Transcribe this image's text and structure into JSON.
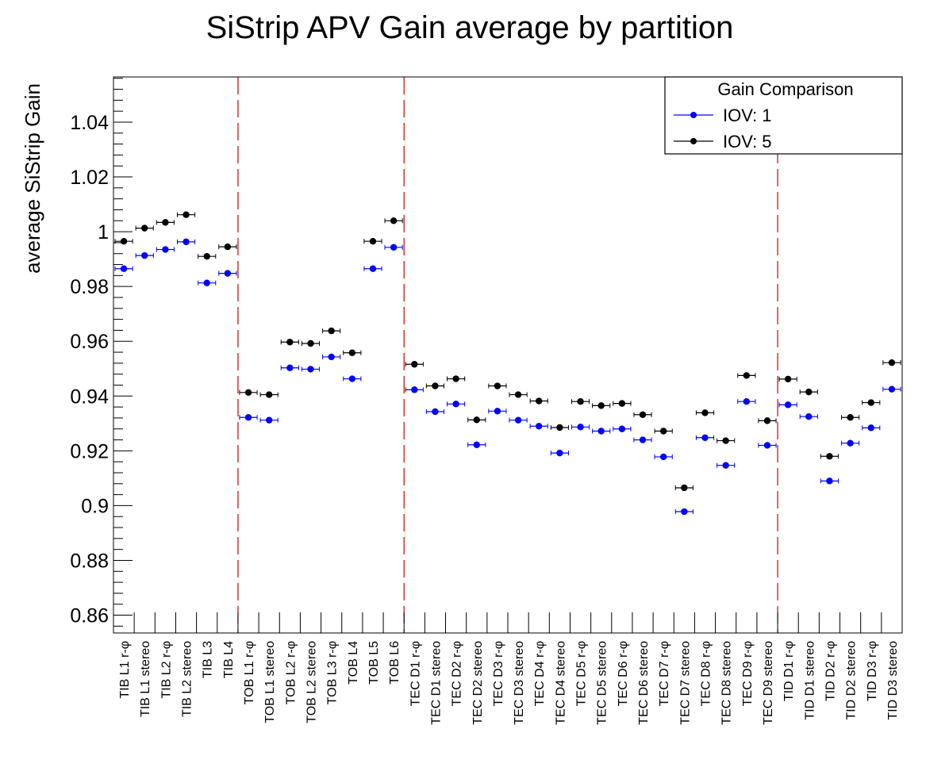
{
  "chart_data": {
    "type": "scatter",
    "title": "SiStrip APV Gain average by partition",
    "ylabel": "average SiStrip Gain",
    "xlabel": "",
    "ylim": [
      0.8535,
      1.0565
    ],
    "yticks": [
      0.86,
      0.88,
      0.9,
      0.92,
      0.94,
      0.96,
      0.98,
      1,
      1.02,
      1.04
    ],
    "ytick_labels": [
      "0.86",
      "0.88",
      "0.9",
      "0.92",
      "0.94",
      "0.96",
      "0.98",
      "1",
      "1.02",
      "1.04"
    ],
    "categories": [
      "TIB L1 r-φ",
      "TIB L1 stereo",
      "TIB L2 r-φ",
      "TIB L2 stereo",
      "TIB L3",
      "TIB L4",
      "TOB L1 r-φ",
      "TOB L1 stereo",
      "TOB L2 r-φ",
      "TOB L2 stereo",
      "TOB L3 r-φ",
      "TOB L4",
      "TOB L5",
      "TOB L6",
      "TEC D1 r-φ",
      "TEC D1 stereo",
      "TEC D2 r-φ",
      "TEC D2 stereo",
      "TEC D3 r-φ",
      "TEC D3 stereo",
      "TEC D4 r-φ",
      "TEC D4 stereo",
      "TEC D5 r-φ",
      "TEC D5 stereo",
      "TEC D6 r-φ",
      "TEC D6 stereo",
      "TEC D7 r-φ",
      "TEC D7 stereo",
      "TEC D8 r-φ",
      "TEC D8 stereo",
      "TEC D9 r-φ",
      "TEC D9 stereo",
      "TID D1 r-φ",
      "TID D1 stereo",
      "TID D2 r-φ",
      "TID D2 stereo",
      "TID D3 r-φ",
      "TID D3 stereo"
    ],
    "series": [
      {
        "name": "IOV: 1",
        "color": "#0000ff",
        "values": [
          0.9865,
          0.9913,
          0.9935,
          0.9963,
          0.9813,
          0.9848,
          0.9322,
          0.9312,
          0.9503,
          0.9498,
          0.9543,
          0.9463,
          0.9865,
          0.9943,
          0.9423,
          0.9343,
          0.9371,
          0.9222,
          0.9345,
          0.9312,
          0.929,
          0.9192,
          0.9287,
          0.9272,
          0.928,
          0.924,
          0.9178,
          0.8978,
          0.9248,
          0.9147,
          0.938,
          0.922,
          0.9368,
          0.9325,
          0.909,
          0.9228,
          0.9284,
          0.9425
        ]
      },
      {
        "name": "IOV: 5",
        "color": "#000000",
        "values": [
          0.9965,
          1.0013,
          1.0034,
          1.0062,
          0.991,
          0.9945,
          0.9413,
          0.9405,
          0.9597,
          0.9592,
          0.9638,
          0.9558,
          0.9965,
          1.004,
          0.9516,
          0.9437,
          0.9463,
          0.9313,
          0.9437,
          0.9405,
          0.9382,
          0.9285,
          0.938,
          0.9365,
          0.9373,
          0.9332,
          0.9272,
          0.9065,
          0.9339,
          0.9237,
          0.9475,
          0.931,
          0.9462,
          0.9415,
          0.918,
          0.9322,
          0.9376,
          0.9522
        ]
      }
    ],
    "separators_after_index": [
      5,
      13,
      31
    ],
    "separator_color": "#cc0000",
    "legend": {
      "title": "Gain Comparison",
      "placement": "top-right"
    }
  }
}
